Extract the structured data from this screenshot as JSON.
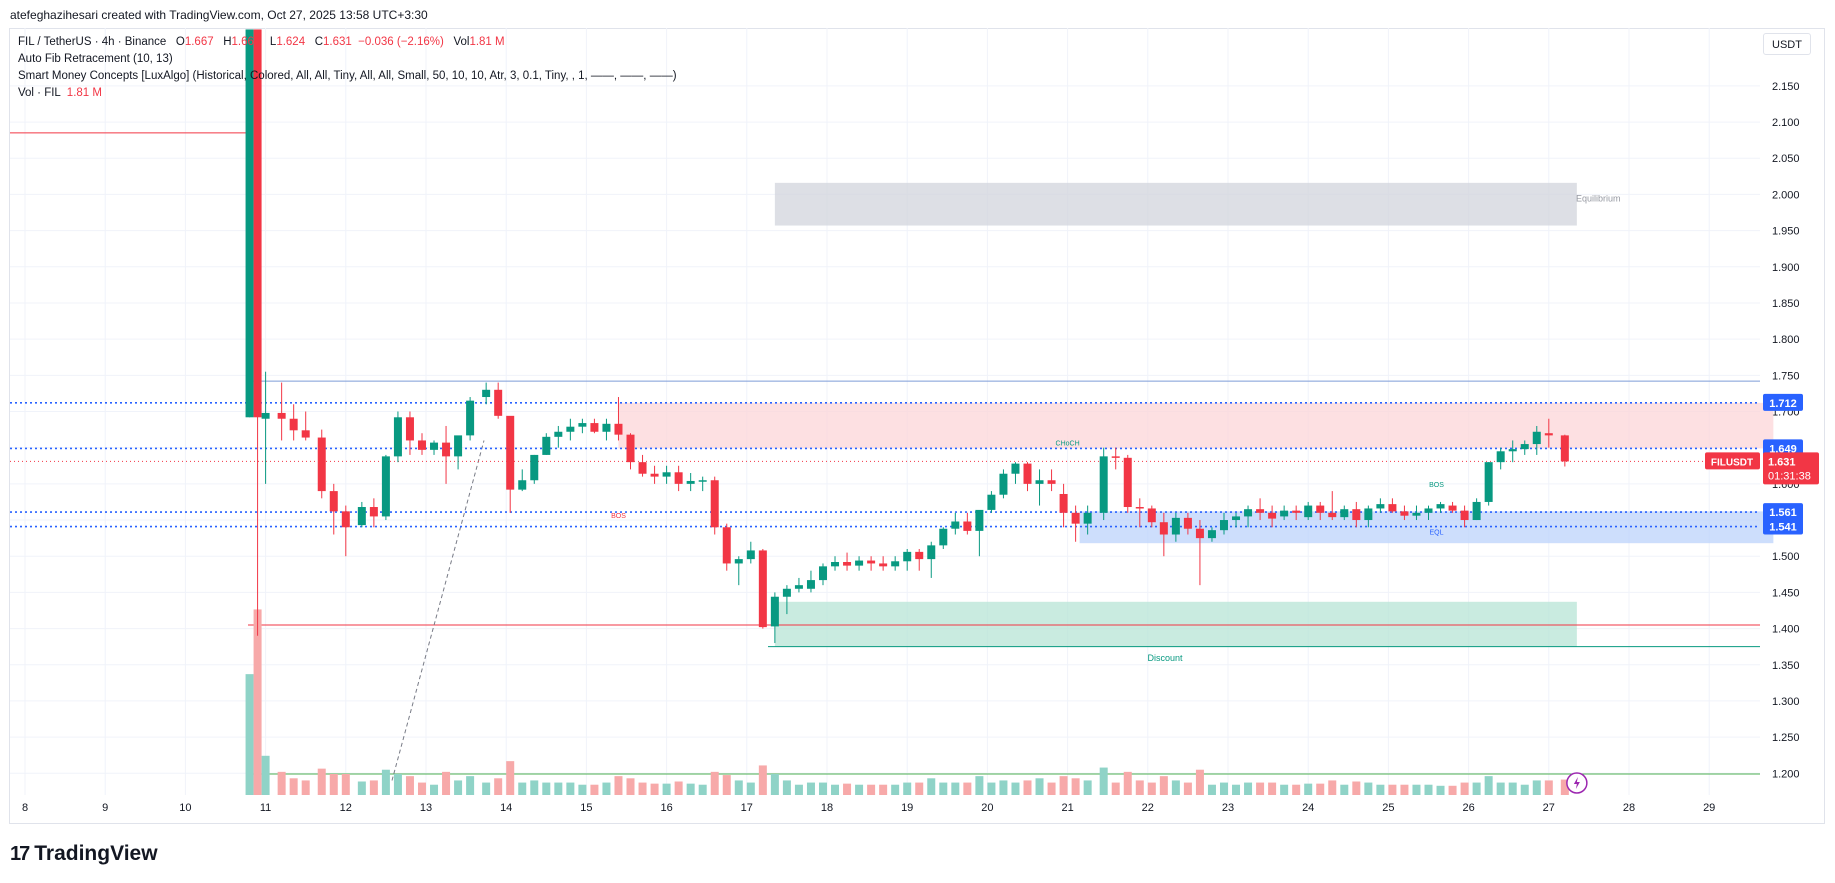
{
  "header": {
    "credit": "atefeghazihesari created with TradingView.com, Oct 27, 2025 13:58 UTC+3:30"
  },
  "legend": {
    "symbol": "FIL / TetherUS · 4h · Binance",
    "o_label": "O",
    "o_value": "1.667",
    "h_label": "H",
    "h_value": "1.668",
    "l_label": "L",
    "l_value": "1.624",
    "c_label": "C",
    "c_value": "1.631",
    "change": "−0.036 (−2.16%)",
    "vol_label": "Vol",
    "vol_value": "1.81 M",
    "indicator1": "Auto Fib Retracement (10, 13)",
    "indicator2": "Smart Money Concepts [LuxAlgo] (Historical, Colored, All, All, Tiny, All, All, Small, 50, 10, 10, Atr, 3, 0.1, Tiny, , 1, ——, ——, ——)",
    "indicator3_label": "Vol · FIL",
    "indicator3_value": "1.81 M"
  },
  "currency": "USDT",
  "footer": {
    "brand": "TradingView"
  },
  "colors": {
    "up": "#089981",
    "down": "#f23645",
    "up_vol": "#8fd3c7",
    "down_vol": "#f7a9a9",
    "blue": "#2962ff"
  },
  "chart_data": {
    "type": "candlestick",
    "symbol": "FILUSDT",
    "interval": "4h",
    "ylim": [
      1.17,
      2.23
    ],
    "y_ticks": [
      "2.150",
      "2.100",
      "2.050",
      "2.000",
      "1.950",
      "1.900",
      "1.850",
      "1.800",
      "1.750",
      "1.700",
      "1.650",
      "1.600",
      "1.550",
      "1.500",
      "1.450",
      "1.400",
      "1.350",
      "1.300",
      "1.250",
      "1.200"
    ],
    "x_ticks": [
      "8",
      "9",
      "10",
      "11",
      "12",
      "13",
      "14",
      "15",
      "16",
      "17",
      "18",
      "19",
      "20",
      "21",
      "22",
      "23",
      "24",
      "25",
      "26",
      "27",
      "28",
      "29"
    ],
    "candles": [
      {
        "d": 10.8,
        "o": 1.692,
        "h": 2.228,
        "l": 1.692,
        "c": 2.228
      },
      {
        "d": 10.9,
        "o": 2.228,
        "h": 2.228,
        "l": 1.39,
        "c": 1.692
      },
      {
        "d": 11.0,
        "o": 1.69,
        "h": 1.755,
        "l": 1.6,
        "c": 1.698
      },
      {
        "d": 11.2,
        "o": 1.698,
        "h": 1.74,
        "l": 1.66,
        "c": 1.69
      },
      {
        "d": 11.35,
        "o": 1.69,
        "h": 1.71,
        "l": 1.66,
        "c": 1.674
      },
      {
        "d": 11.5,
        "o": 1.674,
        "h": 1.7,
        "l": 1.66,
        "c": 1.664
      },
      {
        "d": 11.7,
        "o": 1.664,
        "h": 1.675,
        "l": 1.58,
        "c": 1.59
      },
      {
        "d": 11.85,
        "o": 1.59,
        "h": 1.6,
        "l": 1.53,
        "c": 1.562
      },
      {
        "d": 12.0,
        "o": 1.562,
        "h": 1.57,
        "l": 1.5,
        "c": 1.54
      },
      {
        "d": 12.2,
        "o": 1.543,
        "h": 1.575,
        "l": 1.54,
        "c": 1.568
      },
      {
        "d": 12.35,
        "o": 1.568,
        "h": 1.58,
        "l": 1.54,
        "c": 1.555
      },
      {
        "d": 12.5,
        "o": 1.555,
        "h": 1.64,
        "l": 1.55,
        "c": 1.638
      },
      {
        "d": 12.65,
        "o": 1.638,
        "h": 1.7,
        "l": 1.63,
        "c": 1.692
      },
      {
        "d": 12.8,
        "o": 1.692,
        "h": 1.7,
        "l": 1.64,
        "c": 1.66
      },
      {
        "d": 12.95,
        "o": 1.66,
        "h": 1.67,
        "l": 1.64,
        "c": 1.647
      },
      {
        "d": 13.1,
        "o": 1.647,
        "h": 1.66,
        "l": 1.64,
        "c": 1.657
      },
      {
        "d": 13.25,
        "o": 1.657,
        "h": 1.68,
        "l": 1.6,
        "c": 1.638
      },
      {
        "d": 13.4,
        "o": 1.638,
        "h": 1.66,
        "l": 1.62,
        "c": 1.667
      },
      {
        "d": 13.55,
        "o": 1.667,
        "h": 1.72,
        "l": 1.66,
        "c": 1.715
      },
      {
        "d": 13.75,
        "o": 1.72,
        "h": 1.74,
        "l": 1.71,
        "c": 1.73
      },
      {
        "d": 13.9,
        "o": 1.73,
        "h": 1.74,
        "l": 1.69,
        "c": 1.694
      },
      {
        "d": 14.05,
        "o": 1.694,
        "h": 1.69,
        "l": 1.56,
        "c": 1.592
      },
      {
        "d": 14.2,
        "o": 1.592,
        "h": 1.62,
        "l": 1.59,
        "c": 1.605
      },
      {
        "d": 14.35,
        "o": 1.605,
        "h": 1.64,
        "l": 1.6,
        "c": 1.64
      },
      {
        "d": 14.5,
        "o": 1.64,
        "h": 1.67,
        "l": 1.64,
        "c": 1.665
      },
      {
        "d": 14.65,
        "o": 1.665,
        "h": 1.68,
        "l": 1.65,
        "c": 1.672
      },
      {
        "d": 14.8,
        "o": 1.672,
        "h": 1.69,
        "l": 1.66,
        "c": 1.679
      },
      {
        "d": 14.95,
        "o": 1.679,
        "h": 1.69,
        "l": 1.67,
        "c": 1.684
      },
      {
        "d": 15.1,
        "o": 1.684,
        "h": 1.69,
        "l": 1.67,
        "c": 1.672
      },
      {
        "d": 15.25,
        "o": 1.672,
        "h": 1.69,
        "l": 1.66,
        "c": 1.683
      },
      {
        "d": 15.4,
        "o": 1.683,
        "h": 1.72,
        "l": 1.66,
        "c": 1.668
      },
      {
        "d": 15.55,
        "o": 1.668,
        "h": 1.67,
        "l": 1.62,
        "c": 1.63
      },
      {
        "d": 15.7,
        "o": 1.63,
        "h": 1.64,
        "l": 1.61,
        "c": 1.614
      },
      {
        "d": 15.85,
        "o": 1.614,
        "h": 1.625,
        "l": 1.6,
        "c": 1.61
      },
      {
        "d": 16.0,
        "o": 1.61,
        "h": 1.625,
        "l": 1.6,
        "c": 1.616
      },
      {
        "d": 16.15,
        "o": 1.616,
        "h": 1.625,
        "l": 1.59,
        "c": 1.6
      },
      {
        "d": 16.3,
        "o": 1.6,
        "h": 1.615,
        "l": 1.59,
        "c": 1.604
      },
      {
        "d": 16.45,
        "o": 1.604,
        "h": 1.61,
        "l": 1.59,
        "c": 1.605
      },
      {
        "d": 16.6,
        "o": 1.605,
        "h": 1.61,
        "l": 1.53,
        "c": 1.54
      },
      {
        "d": 16.75,
        "o": 1.54,
        "h": 1.545,
        "l": 1.48,
        "c": 1.49
      },
      {
        "d": 16.9,
        "o": 1.49,
        "h": 1.5,
        "l": 1.46,
        "c": 1.496
      },
      {
        "d": 17.05,
        "o": 1.496,
        "h": 1.52,
        "l": 1.49,
        "c": 1.508
      },
      {
        "d": 17.2,
        "o": 1.508,
        "h": 1.51,
        "l": 1.4,
        "c": 1.402
      },
      {
        "d": 17.35,
        "o": 1.403,
        "h": 1.45,
        "l": 1.38,
        "c": 1.444
      },
      {
        "d": 17.5,
        "o": 1.444,
        "h": 1.46,
        "l": 1.42,
        "c": 1.455
      },
      {
        "d": 17.65,
        "o": 1.455,
        "h": 1.47,
        "l": 1.45,
        "c": 1.46
      },
      {
        "d": 17.8,
        "o": 1.455,
        "h": 1.48,
        "l": 1.45,
        "c": 1.467
      },
      {
        "d": 17.95,
        "o": 1.467,
        "h": 1.49,
        "l": 1.46,
        "c": 1.486
      },
      {
        "d": 18.1,
        "o": 1.486,
        "h": 1.5,
        "l": 1.48,
        "c": 1.492
      },
      {
        "d": 18.25,
        "o": 1.492,
        "h": 1.505,
        "l": 1.48,
        "c": 1.487
      },
      {
        "d": 18.4,
        "o": 1.487,
        "h": 1.5,
        "l": 1.48,
        "c": 1.494
      },
      {
        "d": 18.55,
        "o": 1.494,
        "h": 1.5,
        "l": 1.48,
        "c": 1.49
      },
      {
        "d": 18.7,
        "o": 1.49,
        "h": 1.5,
        "l": 1.48,
        "c": 1.486
      },
      {
        "d": 18.85,
        "o": 1.486,
        "h": 1.5,
        "l": 1.48,
        "c": 1.493
      },
      {
        "d": 19.0,
        "o": 1.493,
        "h": 1.51,
        "l": 1.48,
        "c": 1.506
      },
      {
        "d": 19.15,
        "o": 1.506,
        "h": 1.51,
        "l": 1.48,
        "c": 1.496
      },
      {
        "d": 19.3,
        "o": 1.496,
        "h": 1.52,
        "l": 1.47,
        "c": 1.515
      },
      {
        "d": 19.45,
        "o": 1.515,
        "h": 1.54,
        "l": 1.51,
        "c": 1.538
      },
      {
        "d": 19.6,
        "o": 1.538,
        "h": 1.56,
        "l": 1.53,
        "c": 1.548
      },
      {
        "d": 19.75,
        "o": 1.548,
        "h": 1.56,
        "l": 1.53,
        "c": 1.535
      },
      {
        "d": 19.9,
        "o": 1.535,
        "h": 1.56,
        "l": 1.5,
        "c": 1.564
      },
      {
        "d": 20.05,
        "o": 1.564,
        "h": 1.59,
        "l": 1.56,
        "c": 1.585
      },
      {
        "d": 20.2,
        "o": 1.585,
        "h": 1.62,
        "l": 1.58,
        "c": 1.614
      },
      {
        "d": 20.35,
        "o": 1.614,
        "h": 1.63,
        "l": 1.6,
        "c": 1.628
      },
      {
        "d": 20.5,
        "o": 1.628,
        "h": 1.63,
        "l": 1.59,
        "c": 1.6
      },
      {
        "d": 20.65,
        "o": 1.6,
        "h": 1.62,
        "l": 1.57,
        "c": 1.605
      },
      {
        "d": 20.8,
        "o": 1.605,
        "h": 1.62,
        "l": 1.59,
        "c": 1.6
      },
      {
        "d": 20.95,
        "o": 1.586,
        "h": 1.6,
        "l": 1.54,
        "c": 1.56
      },
      {
        "d": 21.1,
        "o": 1.56,
        "h": 1.57,
        "l": 1.52,
        "c": 1.545
      },
      {
        "d": 21.25,
        "o": 1.545,
        "h": 1.57,
        "l": 1.53,
        "c": 1.56
      },
      {
        "d": 21.45,
        "o": 1.56,
        "h": 1.65,
        "l": 1.55,
        "c": 1.638
      },
      {
        "d": 21.6,
        "o": 1.638,
        "h": 1.65,
        "l": 1.62,
        "c": 1.636
      },
      {
        "d": 21.75,
        "o": 1.636,
        "h": 1.64,
        "l": 1.56,
        "c": 1.568
      },
      {
        "d": 21.9,
        "o": 1.568,
        "h": 1.58,
        "l": 1.54,
        "c": 1.566
      },
      {
        "d": 22.05,
        "o": 1.566,
        "h": 1.57,
        "l": 1.54,
        "c": 1.547
      },
      {
        "d": 22.2,
        "o": 1.547,
        "h": 1.56,
        "l": 1.5,
        "c": 1.53
      },
      {
        "d": 22.35,
        "o": 1.53,
        "h": 1.56,
        "l": 1.52,
        "c": 1.553
      },
      {
        "d": 22.5,
        "o": 1.553,
        "h": 1.56,
        "l": 1.53,
        "c": 1.538
      },
      {
        "d": 22.65,
        "o": 1.538,
        "h": 1.55,
        "l": 1.46,
        "c": 1.525
      },
      {
        "d": 22.8,
        "o": 1.525,
        "h": 1.54,
        "l": 1.52,
        "c": 1.536
      },
      {
        "d": 22.95,
        "o": 1.536,
        "h": 1.56,
        "l": 1.53,
        "c": 1.55
      },
      {
        "d": 23.1,
        "o": 1.55,
        "h": 1.56,
        "l": 1.54,
        "c": 1.555
      },
      {
        "d": 23.25,
        "o": 1.555,
        "h": 1.57,
        "l": 1.54,
        "c": 1.565
      },
      {
        "d": 23.4,
        "o": 1.565,
        "h": 1.58,
        "l": 1.55,
        "c": 1.56
      },
      {
        "d": 23.55,
        "o": 1.56,
        "h": 1.57,
        "l": 1.54,
        "c": 1.552
      },
      {
        "d": 23.7,
        "o": 1.555,
        "h": 1.57,
        "l": 1.55,
        "c": 1.563
      },
      {
        "d": 23.85,
        "o": 1.563,
        "h": 1.57,
        "l": 1.55,
        "c": 1.56
      },
      {
        "d": 24.0,
        "o": 1.554,
        "h": 1.575,
        "l": 1.55,
        "c": 1.57
      },
      {
        "d": 24.15,
        "o": 1.57,
        "h": 1.575,
        "l": 1.55,
        "c": 1.56
      },
      {
        "d": 24.3,
        "o": 1.56,
        "h": 1.59,
        "l": 1.55,
        "c": 1.554
      },
      {
        "d": 24.45,
        "o": 1.554,
        "h": 1.57,
        "l": 1.55,
        "c": 1.565
      },
      {
        "d": 24.6,
        "o": 1.565,
        "h": 1.575,
        "l": 1.54,
        "c": 1.55
      },
      {
        "d": 24.75,
        "o": 1.55,
        "h": 1.57,
        "l": 1.54,
        "c": 1.566
      },
      {
        "d": 24.9,
        "o": 1.566,
        "h": 1.58,
        "l": 1.56,
        "c": 1.572
      },
      {
        "d": 25.05,
        "o": 1.572,
        "h": 1.58,
        "l": 1.56,
        "c": 1.562
      },
      {
        "d": 25.2,
        "o": 1.562,
        "h": 1.57,
        "l": 1.55,
        "c": 1.556
      },
      {
        "d": 25.35,
        "o": 1.556,
        "h": 1.57,
        "l": 1.55,
        "c": 1.56
      },
      {
        "d": 25.5,
        "o": 1.56,
        "h": 1.57,
        "l": 1.55,
        "c": 1.566
      },
      {
        "d": 25.65,
        "o": 1.566,
        "h": 1.575,
        "l": 1.56,
        "c": 1.572
      },
      {
        "d": 25.8,
        "o": 1.57,
        "h": 1.575,
        "l": 1.56,
        "c": 1.563
      },
      {
        "d": 25.95,
        "o": 1.563,
        "h": 1.57,
        "l": 1.54,
        "c": 1.55
      },
      {
        "d": 26.1,
        "o": 1.55,
        "h": 1.58,
        "l": 1.55,
        "c": 1.575
      },
      {
        "d": 26.25,
        "o": 1.575,
        "h": 1.63,
        "l": 1.57,
        "c": 1.63
      },
      {
        "d": 26.4,
        "o": 1.63,
        "h": 1.65,
        "l": 1.62,
        "c": 1.645
      },
      {
        "d": 26.55,
        "o": 1.645,
        "h": 1.66,
        "l": 1.63,
        "c": 1.648
      },
      {
        "d": 26.7,
        "o": 1.648,
        "h": 1.66,
        "l": 1.64,
        "c": 1.655
      },
      {
        "d": 26.85,
        "o": 1.655,
        "h": 1.68,
        "l": 1.64,
        "c": 1.672
      },
      {
        "d": 27.0,
        "o": 1.67,
        "h": 1.69,
        "l": 1.65,
        "c": 1.667
      },
      {
        "d": 27.2,
        "o": 1.667,
        "h": 1.668,
        "l": 1.624,
        "c": 1.631
      }
    ],
    "volume_scale_max": 1.0,
    "price_lines": [
      {
        "label": "1.712",
        "value": 1.712,
        "color": "#2962ff",
        "style": "dotted"
      },
      {
        "label": "1.649",
        "value": 1.649,
        "color": "#2962ff",
        "style": "dotted"
      },
      {
        "label": "1.561",
        "value": 1.561,
        "color": "#2962ff",
        "style": "dotted"
      },
      {
        "label": "1.541",
        "value": 1.541,
        "color": "#2962ff",
        "style": "dotted"
      }
    ],
    "last_price": {
      "symbol": "FILUSDT",
      "value": "1.631",
      "countdown": "01:31:38"
    },
    "zones": [
      {
        "label": "Equilibrium",
        "from_d": 17.35,
        "to_d": 27.35,
        "low": 1.957,
        "high": 2.016,
        "color": "#d1d4dc"
      },
      {
        "label": "",
        "from_d": 15.4,
        "to_d": 29.8,
        "low": 1.649,
        "high": 1.712,
        "color": "#fcd5d8"
      },
      {
        "label": "Discount",
        "from_d": 17.35,
        "to_d": 27.35,
        "low": 1.375,
        "high": 1.437,
        "color": "#b7e4d6"
      },
      {
        "label": "",
        "from_d": 21.15,
        "to_d": 29.8,
        "low": 1.518,
        "high": 1.562,
        "color": "#bcd3fb"
      }
    ],
    "annotations": [
      {
        "text": "BOS",
        "d": 15.4,
        "y": 1.553,
        "color": "#f23645"
      },
      {
        "text": "CHoCH",
        "d": 21.0,
        "y": 1.653,
        "color": "#089981"
      },
      {
        "text": "BOS",
        "d": 25.6,
        "y": 1.596,
        "color": "#089981"
      },
      {
        "text": "EQL",
        "d": 25.6,
        "y": 1.53,
        "color": "#2962ff"
      }
    ]
  }
}
